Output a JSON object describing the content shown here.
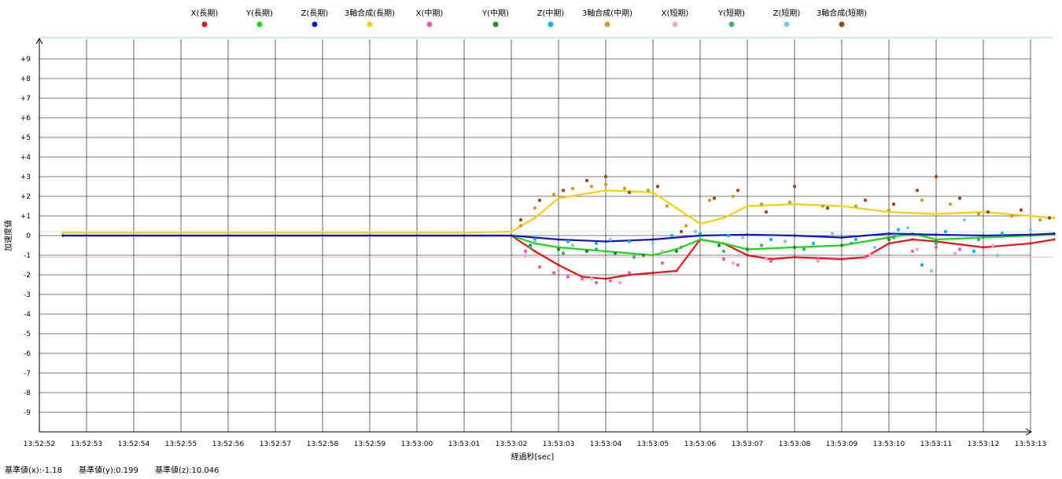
{
  "footer": {
    "base_x": "基準値(x):-1.18",
    "base_y": "基準値(y):0.199",
    "base_z": "基準値(z):10.046"
  },
  "chart_data": {
    "type": "scatter",
    "title": "",
    "xlabel": "経過秒[sec]",
    "ylabel": "加速度値",
    "x_ticks": [
      "13:52:52",
      "13:52:53",
      "13:52:54",
      "13:52:55",
      "13:52:56",
      "13:52:57",
      "13:52:58",
      "13:52:59",
      "13:53:00",
      "13:53:01",
      "13:53:02",
      "13:53:03",
      "13:53:04",
      "13:53:05",
      "13:53:06",
      "13:53:07",
      "13:53:08",
      "13:53:09",
      "13:53:10",
      "13:53:11",
      "13:53:12",
      "13:53:13"
    ],
    "y_ticks": [
      "+9",
      "+8",
      "+7",
      "+6",
      "+5",
      "+4",
      "+3",
      "+2",
      "+1",
      "0",
      "-1",
      "-2",
      "-3",
      "-4",
      "-5",
      "-6",
      "-7",
      "-8",
      "-9"
    ],
    "ylim": [
      -10,
      10
    ],
    "xlim": [
      "13:52:52",
      "13:53:13"
    ],
    "grid": true,
    "legend_position": "top",
    "reference_lines": [
      {
        "value": 0.2,
        "color": "#c8e6c8"
      },
      {
        "value": -1.1,
        "color": "#f4b8c8"
      }
    ],
    "series": [
      {
        "name": "X(長期)",
        "color": "#e8141c",
        "style": "line",
        "x": [
          "13:52:52.5",
          "13:53:01",
          "13:53:02",
          "13:53:02.5",
          "13:53:03",
          "13:53:03.5",
          "13:53:04",
          "13:53:04.5",
          "13:53:05",
          "13:53:05.5",
          "13:53:06",
          "13:53:06.5",
          "13:53:07",
          "13:53:07.5",
          "13:53:08",
          "13:53:09",
          "13:53:09.5",
          "13:53:10",
          "13:53:10.5",
          "13:53:11",
          "13:53:12",
          "13:53:13",
          "13:53:13.5"
        ],
        "y": [
          0,
          0,
          0,
          -0.8,
          -1.5,
          -2.1,
          -2.2,
          -2.0,
          -1.9,
          -1.8,
          -0.2,
          -0.4,
          -1.0,
          -1.2,
          -1.1,
          -1.2,
          -1.1,
          -0.4,
          -0.2,
          -0.3,
          -0.6,
          -0.4,
          -0.2
        ]
      },
      {
        "name": "Y(長期)",
        "color": "#19d719",
        "style": "line",
        "x": [
          "13:52:52.5",
          "13:53:01",
          "13:53:02",
          "13:53:02.5",
          "13:53:03",
          "13:53:04",
          "13:53:05",
          "13:53:05.5",
          "13:53:06",
          "13:53:06.5",
          "13:53:07",
          "13:53:08",
          "13:53:09",
          "13:53:10",
          "13:53:10.5",
          "13:53:11",
          "13:53:12",
          "13:53:13",
          "13:53:13.5"
        ],
        "y": [
          0,
          0,
          0,
          -0.4,
          -0.6,
          -0.8,
          -1.0,
          -0.7,
          -0.2,
          -0.4,
          -0.7,
          -0.6,
          -0.5,
          -0.1,
          0.1,
          -0.2,
          -0.1,
          0,
          0.05
        ]
      },
      {
        "name": "Z(長期)",
        "color": "#1414c8",
        "style": "line",
        "x": [
          "13:52:52.5",
          "13:53:01",
          "13:53:02",
          "13:53:03",
          "13:53:04",
          "13:53:05",
          "13:53:06",
          "13:53:07",
          "13:53:08",
          "13:53:09",
          "13:53:10",
          "13:53:11",
          "13:53:12",
          "13:53:13",
          "13:53:13.5"
        ],
        "y": [
          0,
          0,
          0,
          -0.2,
          -0.3,
          -0.2,
          0,
          0.05,
          0,
          -0.1,
          0.1,
          0.05,
          0,
          0.05,
          0.1
        ]
      },
      {
        "name": "3軸合成(長期)",
        "color": "#f0d010",
        "style": "line",
        "x": [
          "13:52:52.5",
          "13:53:01",
          "13:53:02",
          "13:53:02.5",
          "13:53:03",
          "13:53:04",
          "13:53:05",
          "13:53:05.5",
          "13:53:06",
          "13:53:06.5",
          "13:53:07",
          "13:53:08",
          "13:53:09",
          "13:53:10",
          "13:53:11",
          "13:53:12",
          "13:53:13",
          "13:53:13.5"
        ],
        "y": [
          0.15,
          0.15,
          0.2,
          0.9,
          1.9,
          2.3,
          2.2,
          1.4,
          0.6,
          0.9,
          1.5,
          1.6,
          1.5,
          1.2,
          1.1,
          1.2,
          1.0,
          0.9
        ]
      },
      {
        "name": "X(中期)",
        "color": "#e860a8",
        "style": "points",
        "x": [
          "13:53:02.3",
          "13:53:02.6",
          "13:53:02.9",
          "13:53:03.2",
          "13:53:03.5",
          "13:53:03.8",
          "13:53:04.1",
          "13:53:04.5",
          "13:53:05.2",
          "13:53:06.5",
          "13:53:06.8",
          "13:53:07.5",
          "13:53:08.5",
          "13:53:09.5",
          "13:53:10.5",
          "13:53:11",
          "13:53:11.5"
        ],
        "y": [
          -0.8,
          -1.6,
          -1.9,
          -2.1,
          -2.2,
          -2.4,
          -2.3,
          -1.9,
          -1.4,
          -1.2,
          -1.5,
          -1.3,
          -1.2,
          -1.1,
          -0.8,
          -0.6,
          -0.7
        ]
      },
      {
        "name": "Y(中期)",
        "color": "#208c30",
        "style": "points",
        "x": [
          "13:53:02.4",
          "13:53:03",
          "13:53:03.6",
          "13:53:04.2",
          "13:53:04.8",
          "13:53:05.5",
          "13:53:06.4",
          "13:53:07",
          "13:53:08",
          "13:53:09",
          "13:53:10",
          "13:53:11"
        ],
        "y": [
          -0.5,
          -0.7,
          -0.8,
          -0.9,
          -1.0,
          -0.8,
          -0.5,
          -0.7,
          -0.6,
          -0.5,
          -0.2,
          -0.3
        ]
      },
      {
        "name": "Z(中期)",
        "color": "#10b0f0",
        "style": "points",
        "x": [
          "13:53:02.5",
          "13:53:03.2",
          "13:53:03.8",
          "13:53:04.5",
          "13:53:05.4",
          "13:53:06",
          "13:53:06.6",
          "13:53:07.5",
          "13:53:08.4",
          "13:53:09.3",
          "13:53:10.2",
          "13:53:10.7",
          "13:53:11.2",
          "13:53:11.8",
          "13:53:12.4"
        ],
        "y": [
          -0.2,
          -0.3,
          -0.4,
          -0.3,
          0,
          0.1,
          0,
          -0.2,
          -0.4,
          -0.2,
          0.3,
          -1.5,
          0.2,
          -0.8,
          0.1
        ]
      },
      {
        "name": "3軸合成(中期)",
        "color": "#c8a028",
        "style": "points",
        "x": [
          "13:53:02.2",
          "13:53:02.5",
          "13:53:02.9",
          "13:53:03.3",
          "13:53:03.7",
          "13:53:04.0",
          "13:53:04.4",
          "13:53:04.9",
          "13:53:05.3",
          "13:53:05.7",
          "13:53:06.2",
          "13:53:06.7",
          "13:53:07.3",
          "13:53:07.9",
          "13:53:08.6",
          "13:53:09.3",
          "13:53:10.0",
          "13:53:10.7",
          "13:53:11.3",
          "13:53:11.9",
          "13:53:12.6",
          "13:53:13.2"
        ],
        "y": [
          0.5,
          1.4,
          2.1,
          2.4,
          2.5,
          2.6,
          2.4,
          2.3,
          1.5,
          0.5,
          1.8,
          2.0,
          1.6,
          1.7,
          1.5,
          1.5,
          1.3,
          1.8,
          1.6,
          1.1,
          1.0,
          0.8
        ]
      },
      {
        "name": "X(短期)",
        "color": "#f4a8c8",
        "style": "points",
        "x": [
          "13:53:02.3",
          "13:53:03",
          "13:53:03.7",
          "13:53:04.3",
          "13:53:05.2",
          "13:53:06.7",
          "13:53:07.4",
          "13:53:08.5",
          "13:53:09.6",
          "13:53:10.6",
          "13:53:11.4",
          "13:53:12.2"
        ],
        "y": [
          -1.0,
          -1.8,
          -2.2,
          -2.4,
          -0.8,
          -1.4,
          -1.2,
          -1.3,
          -1.0,
          -0.7,
          -0.9,
          -0.5
        ]
      },
      {
        "name": "Y(短期)",
        "color": "#40b070",
        "style": "points",
        "x": [
          "13:53:02.4",
          "13:53:03.1",
          "13:53:03.8",
          "13:53:04.6",
          "13:53:05.6",
          "13:53:06.5",
          "13:53:07.3",
          "13:53:08.2",
          "13:53:09.2",
          "13:53:10.1",
          "13:53:11",
          "13:53:11.9"
        ],
        "y": [
          -0.6,
          -0.9,
          -0.7,
          -1.1,
          -0.6,
          -0.8,
          -0.5,
          -0.7,
          -0.4,
          -0.1,
          -0.4,
          -0.2
        ]
      },
      {
        "name": "Z(短期)",
        "color": "#80c8f0",
        "style": "points",
        "x": [
          "13:53:02.5",
          "13:53:03.3",
          "13:53:04.1",
          "13:53:05.0",
          "13:53:05.9",
          "13:53:06.9",
          "13:53:07.8",
          "13:53:08.8",
          "13:53:09.7",
          "13:53:10.4",
          "13:53:10.9",
          "13:53:11.6",
          "13:53:12.3",
          "13:53:13.0"
        ],
        "y": [
          -0.3,
          -0.5,
          -0.2,
          -0.4,
          0.2,
          -0.1,
          -0.3,
          0.1,
          -0.6,
          0.4,
          -1.8,
          0.8,
          -1.0,
          0.3
        ]
      },
      {
        "name": "3軸合成(短期)",
        "color": "#9a4a20",
        "style": "points",
        "x": [
          "13:53:02.2",
          "13:53:02.6",
          "13:53:03.1",
          "13:53:03.6",
          "13:53:04.0",
          "13:53:04.5",
          "13:53:05.1",
          "13:53:05.6",
          "13:53:06.3",
          "13:53:06.8",
          "13:53:07.4",
          "13:53:08.0",
          "13:53:08.7",
          "13:53:09.5",
          "13:53:10.1",
          "13:53:10.6",
          "13:53:11.0",
          "13:53:11.5",
          "13:53:12.1",
          "13:53:12.8",
          "13:53:13.4"
        ],
        "y": [
          0.8,
          1.8,
          2.3,
          2.8,
          3.0,
          2.2,
          2.5,
          0.2,
          1.9,
          2.3,
          1.2,
          2.5,
          1.4,
          1.8,
          1.6,
          2.3,
          3.0,
          1.9,
          1.2,
          1.3,
          0.9
        ]
      }
    ]
  }
}
